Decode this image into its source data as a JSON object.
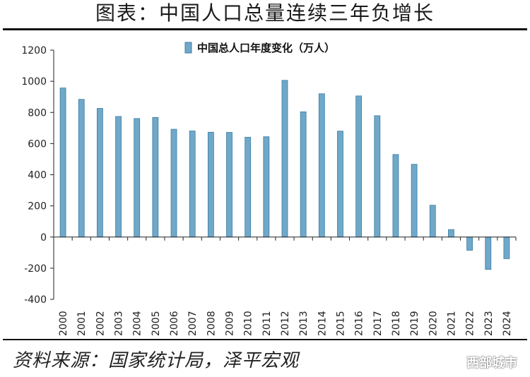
{
  "header": {
    "title": "图表：中国人口总量连续三年负增长"
  },
  "footer": {
    "source": "资料来源：国家统计局，泽平宏观",
    "watermark": "西部城市"
  },
  "colors": {
    "bar_fill": "#6fa8c8",
    "bar_edge": "#3c7ea4",
    "axis": "#222222"
  },
  "chart_data": {
    "type": "bar",
    "title": "",
    "legend": [
      "中国总人口年度变化（万人）"
    ],
    "legend_position": "top-center",
    "xlabel": "",
    "ylabel": "",
    "ylim": [
      -400,
      1200
    ],
    "yticks": [
      -400,
      -200,
      0,
      200,
      400,
      600,
      800,
      1000,
      1200
    ],
    "categories": [
      "2000",
      "2001",
      "2002",
      "2003",
      "2004",
      "2005",
      "2006",
      "2007",
      "2008",
      "2009",
      "2010",
      "2011",
      "2012",
      "2013",
      "2014",
      "2015",
      "2016",
      "2017",
      "2018",
      "2019",
      "2020",
      "2021",
      "2022",
      "2023",
      "2024"
    ],
    "series": [
      {
        "name": "中国总人口年度变化（万人）",
        "values": [
          957,
          884,
          826,
          774,
          761,
          768,
          692,
          681,
          673,
          672,
          641,
          644,
          1006,
          804,
          920,
          680,
          906,
          779,
          530,
          467,
          204,
          48,
          -85,
          -208,
          -139
        ]
      }
    ]
  }
}
